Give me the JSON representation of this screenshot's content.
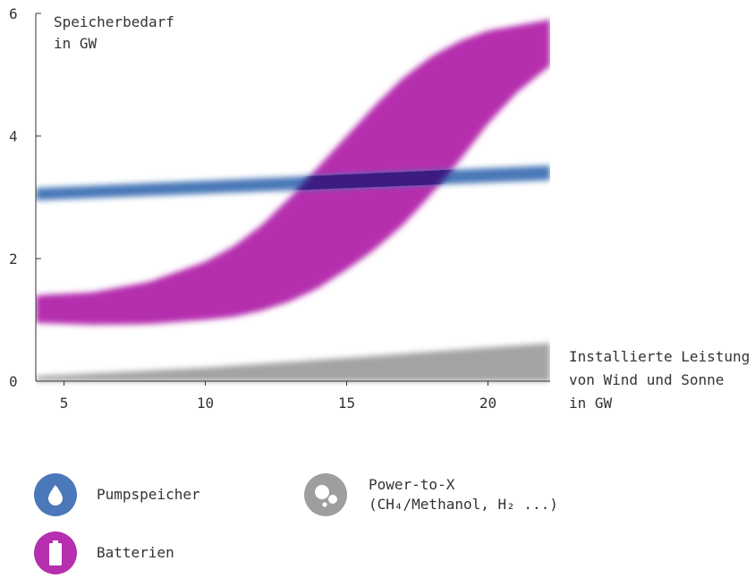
{
  "chart_data": {
    "type": "area",
    "ylabel_lines": [
      "Speicherbedarf",
      "in GW"
    ],
    "xlabel_lines": [
      "Installierte Leistung",
      "von Wind und Sonne",
      "in GW"
    ],
    "xlim": [
      4,
      22.2
    ],
    "ylim": [
      0,
      6
    ],
    "xticks": [
      5,
      10,
      15,
      20
    ],
    "yticks": [
      0,
      2,
      4,
      6
    ],
    "grid": false,
    "series": [
      {
        "name": "Power-to-X",
        "color": "#9e9e9e",
        "x": [
          4,
          10,
          15,
          20,
          22.2
        ],
        "lower": [
          0,
          0,
          0,
          0,
          0
        ],
        "upper": [
          0.08,
          0.22,
          0.38,
          0.55,
          0.62
        ]
      },
      {
        "name": "Batterien",
        "color": "#b52fae",
        "x": [
          4,
          6,
          8,
          10,
          11,
          12,
          13,
          14,
          15,
          16,
          17,
          18,
          19,
          20,
          21,
          22.2
        ],
        "lower": [
          0.95,
          0.92,
          0.93,
          1.0,
          1.05,
          1.15,
          1.3,
          1.52,
          1.82,
          2.15,
          2.55,
          3.05,
          3.6,
          4.2,
          4.7,
          5.15
        ],
        "upper": [
          1.4,
          1.45,
          1.62,
          1.95,
          2.2,
          2.55,
          3.0,
          3.5,
          4.0,
          4.5,
          4.95,
          5.3,
          5.55,
          5.72,
          5.8,
          5.9
        ]
      },
      {
        "name": "Pumpspeicher",
        "color": "#4a78b8",
        "x": [
          4,
          22.2
        ],
        "lower": [
          2.95,
          3.28
        ],
        "upper": [
          3.15,
          3.52
        ]
      }
    ],
    "overlap_color": "#3c1e82"
  },
  "legend": {
    "pumpspeicher": {
      "label": "Pumpspeicher",
      "color": "#4a78b8",
      "icon": "water-drop-icon"
    },
    "batterien": {
      "label": "Batterien",
      "color": "#b52fae",
      "icon": "battery-icon"
    },
    "ptx": {
      "label_line1": "Power-to-X",
      "label_line2": "(CH₄/Methanol, H₂ ...)",
      "color": "#9e9e9e",
      "icon": "bubbles-icon"
    }
  }
}
